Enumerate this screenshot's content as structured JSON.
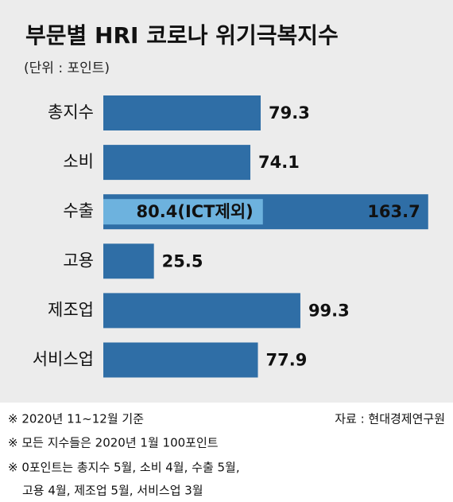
{
  "chart_data": {
    "type": "bar",
    "orientation": "horizontal",
    "title": "부문별 HRI 코로나 위기극복지수",
    "subtitle": "(단위 : 포인트)",
    "categories": [
      "총지수",
      "소비",
      "수출",
      "고용",
      "제조업",
      "서비스업"
    ],
    "series": [
      {
        "color": "#2f6ea6",
        "values": [
          79.3,
          74.1,
          163.7,
          25.5,
          99.3,
          77.9
        ]
      },
      {
        "color": "#6db2de",
        "values": [
          null,
          null,
          80.4,
          null,
          null,
          null
        ],
        "value_labels": [
          null,
          null,
          "80.4(ICT제외)",
          null,
          null,
          null
        ]
      }
    ],
    "notes": [
      "※ 2020년 11~12월 기준",
      "※ 모든 지수들은 2020년 1월 100포인트",
      "※ 0포인트는 총지수 5월, 소비 4월, 수출 5월,",
      "고용 4월, 제조업 5월, 서비스업 3월"
    ],
    "source": "자료 : 현대경제연구원"
  }
}
